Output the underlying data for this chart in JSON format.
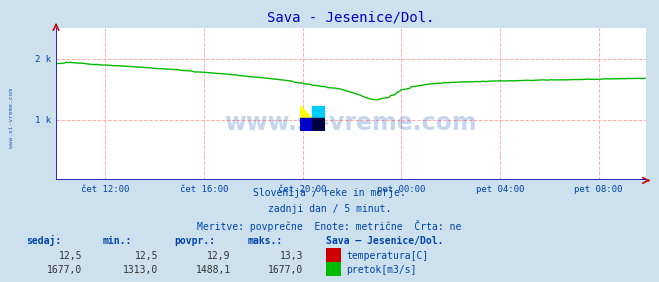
{
  "title": "Sava - Jesenice/Dol.",
  "bg_color": "#cce0ee",
  "plot_bg_color": "#ffffff",
  "title_color": "#0000cc",
  "axis_color": "#0000cc",
  "grid_color": "#ffaaaa",
  "text_color": "#0044aa",
  "watermark_text": "www.si-vreme.com",
  "watermark_color": "#0044aa",
  "subtitle_lines": [
    "Slovenija / reke in morje.",
    "zadnji dan / 5 minut.",
    "Meritve: povprečne  Enote: metrične  Črta: ne"
  ],
  "xlabel_ticks": [
    "čet 12:00",
    "čet 16:00",
    "čet 20:00",
    "pet 00:00",
    "pet 04:00",
    "pet 08:00"
  ],
  "ylabel_left": [
    "1 k",
    "2 k"
  ],
  "ylim": [
    0,
    2500
  ],
  "yticks": [
    1000,
    2000
  ],
  "flow_color": "#00bb00",
  "temp_color": "#cc0000",
  "flow_linewidth": 1.0,
  "num_points": 288,
  "sedaj_label": "sedaj:",
  "min_label": "min.:",
  "povpr_label": "povpr.:",
  "maks_label": "maks.:",
  "station_label": "Sava – Jesenice/Dol.",
  "temp_label": "temperatura[C]",
  "flow_label": "pretok[m3/s]",
  "temp_sedaj": "12,5",
  "temp_min": "12,5",
  "temp_povpr": "12,9",
  "temp_maks": "13,3",
  "flow_sedaj": "1677,0",
  "flow_min": "1313,0",
  "flow_povpr": "1488,1",
  "flow_maks": "1677,0",
  "tick_x_positions": [
    24,
    72,
    120,
    168,
    216,
    264
  ]
}
